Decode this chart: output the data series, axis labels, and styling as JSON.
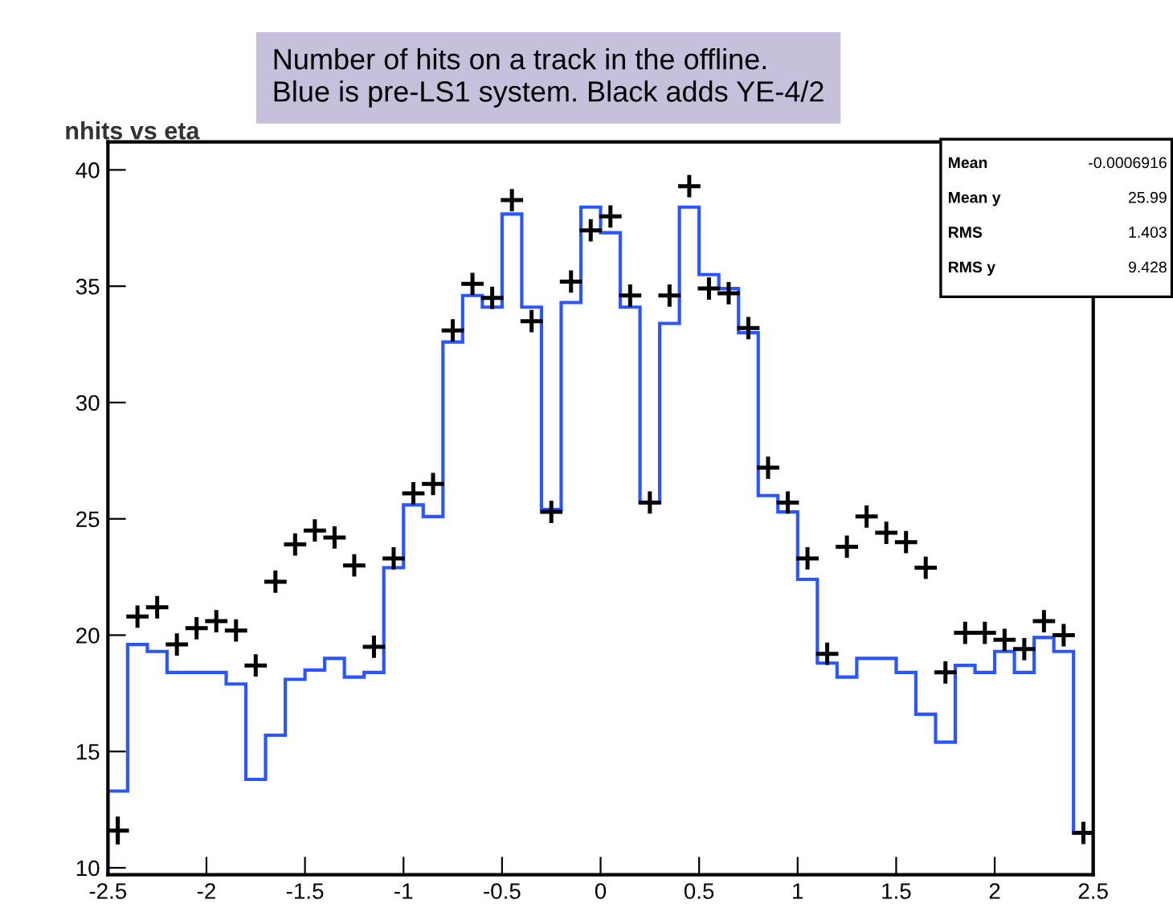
{
  "chart_data": {
    "type": "histogram",
    "title": "nhits vs eta",
    "annotations": [
      "Number of hits on a track in the offline.\nBlue is pre-LS1 system. Black adds YE-4/2",
      "Mean",
      "-0.0006916",
      "Mean y",
      "25.99",
      "RMS",
      "1.403",
      "RMS y",
      "9.428"
    ],
    "bins": [
      -2.5,
      -2.4,
      -2.3,
      -2.2,
      -2.1,
      -2.0,
      -1.9,
      -1.8,
      -1.7,
      -1.6,
      -1.5,
      -1.4,
      -1.3,
      -1.2,
      -1.1,
      -1.0,
      -0.9,
      -0.8,
      -0.7,
      -0.6,
      -0.5,
      -0.4,
      -0.3,
      -0.2,
      -0.1,
      0.0,
      0.1,
      0.2,
      0.3,
      0.4,
      0.5,
      0.6,
      0.7,
      0.8,
      0.9,
      1.0,
      1.1,
      1.2,
      1.3,
      1.4,
      1.5,
      1.6,
      1.7,
      1.8,
      1.9,
      2.0,
      2.1,
      2.2,
      2.3,
      2.4,
      2.5
    ],
    "series": [
      {
        "color": "#2a55ff",
        "values": [
          13.3,
          19.6,
          19.3,
          18.4,
          18.4,
          18.4,
          17.9,
          13.8,
          15.7,
          18.1,
          18.5,
          19.0,
          18.2,
          18.4,
          22.9,
          25.6,
          25.1,
          32.6,
          34.6,
          34.1,
          38.1,
          34.1,
          25.4,
          34.3,
          38.4,
          37.3,
          34.1,
          25.7,
          33.4,
          38.4,
          35.5,
          34.9,
          33.0,
          26.0,
          25.3,
          22.4,
          18.8,
          18.2,
          19.0,
          19.0,
          18.4,
          16.6,
          15.4,
          18.7,
          18.4,
          19.3,
          18.4,
          19.9,
          19.3,
          11.5
        ]
      },
      {
        "type": "scatter",
        "color": "#000000",
        "marker": "cross",
        "x": [
          -2.45,
          -2.35,
          -2.25,
          -2.15,
          -2.05,
          -1.95,
          -1.85,
          -1.75,
          -1.65,
          -1.55,
          -1.45,
          -1.35,
          -1.25,
          -1.15,
          -1.05,
          -0.95,
          -0.85,
          -0.75,
          -0.65,
          -0.55,
          -0.45,
          -0.35,
          -0.25,
          -0.15,
          -0.05,
          0.05,
          0.15,
          0.25,
          0.35,
          0.45,
          0.55,
          0.65,
          0.75,
          0.85,
          0.95,
          1.05,
          1.15,
          1.25,
          1.35,
          1.45,
          1.55,
          1.65,
          1.75,
          1.85,
          1.95,
          2.05,
          2.15,
          2.25,
          2.35,
          2.45
        ],
        "values": [
          11.6,
          20.8,
          21.2,
          19.6,
          20.3,
          20.6,
          20.2,
          18.7,
          22.3,
          23.9,
          24.5,
          24.2,
          23.0,
          19.5,
          23.3,
          26.1,
          26.5,
          33.1,
          35.1,
          34.5,
          38.7,
          33.5,
          25.3,
          35.2,
          37.4,
          38.0,
          34.6,
          25.7,
          34.6,
          39.3,
          34.9,
          34.7,
          33.2,
          27.2,
          25.7,
          23.3,
          19.2,
          23.8,
          25.1,
          24.4,
          24.0,
          22.9,
          18.4,
          20.1,
          20.1,
          19.8,
          19.4,
          20.6,
          20.0,
          11.5
        ],
        "errors": [
          0.6,
          null,
          null,
          null,
          null,
          null,
          null,
          null,
          null,
          null,
          null,
          null,
          null,
          null,
          null,
          null,
          null,
          null,
          null,
          null,
          null,
          null,
          null,
          null,
          null,
          null,
          null,
          null,
          null,
          null,
          null,
          null,
          null,
          null,
          null,
          null,
          null,
          null,
          null,
          null,
          null,
          null,
          null,
          null,
          null,
          null,
          null,
          null,
          null,
          null
        ]
      }
    ],
    "xlim": [
      -2.5,
      2.5
    ],
    "ylim": [
      9.7,
      41.2
    ],
    "xticks": [
      -2.5,
      -2,
      -1.5,
      -1,
      -0.5,
      0,
      0.5,
      1,
      1.5,
      2,
      2.5
    ],
    "yticks": [
      10,
      15,
      20,
      25,
      30,
      35,
      40
    ]
  }
}
